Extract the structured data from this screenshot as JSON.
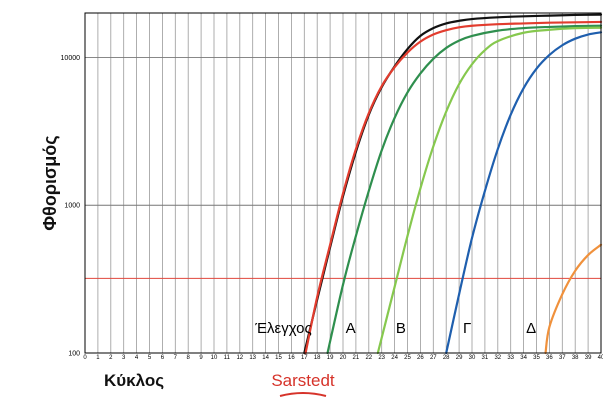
{
  "chart_data": {
    "type": "line",
    "xlabel": "Κύκλος",
    "ylabel": "Φθορισμός",
    "xlim": [
      0,
      40
    ],
    "ylim": [
      100,
      20000
    ],
    "yscale": "log",
    "x_ticks": [
      0,
      1,
      2,
      3,
      4,
      5,
      6,
      7,
      8,
      9,
      10,
      11,
      12,
      13,
      14,
      15,
      16,
      17,
      18,
      19,
      20,
      21,
      22,
      23,
      24,
      25,
      26,
      27,
      28,
      29,
      30,
      31,
      32,
      33,
      34,
      35,
      36,
      37,
      38,
      39,
      40
    ],
    "y_ticks": [
      100,
      1000,
      10000
    ],
    "y_tick_labels": [
      "100",
      "1000",
      "10000"
    ],
    "grid": true,
    "threshold": {
      "value": 320,
      "color": "#e0463c"
    },
    "brand_caption": {
      "text": "Sarstedt",
      "color": "#d6332a"
    },
    "series": [
      {
        "label": "Έλεγχος",
        "color": "#111111",
        "ct": 17.6,
        "plateau": 19500,
        "label_x": 13.2,
        "label_y": 150,
        "x": [
          17.0,
          18,
          19,
          20,
          21,
          22,
          23,
          24,
          25,
          26,
          27,
          28,
          29,
          30,
          32,
          34,
          36,
          38,
          40
        ],
        "y": [
          100,
          230,
          520,
          1150,
          2300,
          4100,
          6300,
          8700,
          11400,
          14000,
          15800,
          17000,
          17700,
          18200,
          18700,
          19000,
          19200,
          19400,
          19500
        ]
      },
      {
        "label": "",
        "color": "#e23c2e",
        "ct": 17.5,
        "plateau": 17500,
        "x": [
          17.1,
          18,
          19,
          20,
          21,
          22,
          23,
          24,
          25,
          26,
          27,
          28,
          29,
          30,
          32,
          34,
          36,
          38,
          40
        ],
        "y": [
          100,
          240,
          540,
          1200,
          2400,
          4200,
          6400,
          8600,
          10800,
          12800,
          14300,
          15300,
          16000,
          16400,
          16800,
          17000,
          17200,
          17300,
          17400
        ]
      },
      {
        "label": "A",
        "color": "#2f8f4e",
        "ct": 19.0,
        "plateau": 16500,
        "label_x": 20.2,
        "label_y": 150,
        "x": [
          18.8,
          20,
          21,
          22,
          23,
          24,
          25,
          26,
          27,
          28,
          29,
          30,
          32,
          34,
          36,
          38,
          40
        ],
        "y": [
          100,
          290,
          620,
          1250,
          2350,
          3900,
          5800,
          7800,
          9800,
          11600,
          13000,
          14000,
          15200,
          15800,
          16100,
          16300,
          16400
        ]
      },
      {
        "label": "B",
        "color": "#86c84e",
        "ct": 22.7,
        "plateau": 16000,
        "label_x": 24.1,
        "label_y": 150,
        "x": [
          22.7,
          24,
          25,
          26,
          27,
          28,
          29,
          30,
          31,
          32,
          34,
          36,
          38,
          40
        ],
        "y": [
          100,
          280,
          620,
          1300,
          2500,
          4300,
          6600,
          9000,
          11200,
          12900,
          14700,
          15400,
          15800,
          15900
        ]
      },
      {
        "label": "Γ",
        "color": "#1f5fae",
        "ct": 28.0,
        "plateau": 15000,
        "label_x": 29.3,
        "label_y": 150,
        "x": [
          28.0,
          29,
          30,
          31,
          32,
          33,
          34,
          35,
          36,
          37,
          38,
          39,
          40
        ],
        "y": [
          100,
          250,
          600,
          1250,
          2400,
          4100,
          6200,
          8400,
          10400,
          12100,
          13400,
          14300,
          14800
        ]
      },
      {
        "label": "Δ",
        "color": "#f0913c",
        "ct": 35.6,
        "plateau": 900,
        "label_x": 34.2,
        "label_y": 150,
        "x": [
          35.7,
          36,
          37,
          38,
          39,
          40
        ],
        "y": [
          100,
          150,
          250,
          360,
          460,
          540
        ]
      }
    ]
  }
}
